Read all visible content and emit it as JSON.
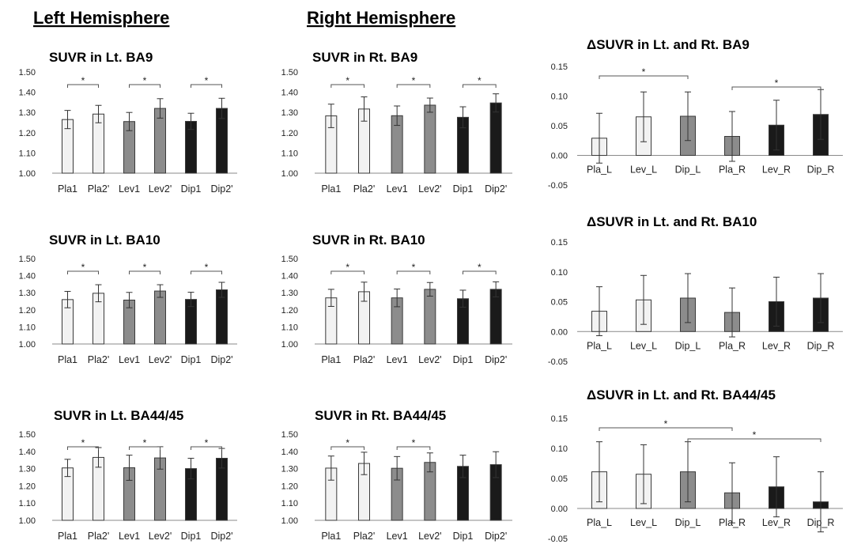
{
  "headings": {
    "left": "Left Hemisphere",
    "right": "Right Hemisphere"
  },
  "colors": {
    "placebo": "#f2f2f2",
    "levomilnacipran": "#8c8c8c",
    "diprofen": "#1a1a1a",
    "outline": "#3a3a3a"
  },
  "chart_data": [
    {
      "type": "bar",
      "title": "SUVR in Lt. BA9",
      "categories": [
        "Pla1",
        "Pla2'",
        "Lev1",
        "Lev2'",
        "Dip1",
        "Dip2'"
      ],
      "values": [
        1.265,
        1.292,
        1.255,
        1.32,
        1.256,
        1.32
      ],
      "errors": [
        0.045,
        0.043,
        0.045,
        0.048,
        0.04,
        0.05
      ],
      "ylim": [
        1.0,
        1.5
      ],
      "yticks": [
        "1.00",
        "1.10",
        "1.20",
        "1.30",
        "1.40",
        "1.50"
      ],
      "significance": [
        {
          "from": 0,
          "to": 1,
          "label": "*"
        },
        {
          "from": 2,
          "to": 3,
          "label": "*"
        },
        {
          "from": 4,
          "to": 5,
          "label": "*"
        }
      ]
    },
    {
      "type": "bar",
      "title": "SUVR in Rt. BA9",
      "categories": [
        "Pla1",
        "Pla2'",
        "Lev1",
        "Lev2'",
        "Dip1",
        "Dip2'"
      ],
      "values": [
        1.283,
        1.317,
        1.284,
        1.336,
        1.276,
        1.347
      ],
      "errors": [
        0.058,
        0.06,
        0.048,
        0.035,
        0.052,
        0.045
      ],
      "ylim": [
        1.0,
        1.5
      ],
      "yticks": [
        "1.00",
        "1.10",
        "1.20",
        "1.30",
        "1.40",
        "1.50"
      ],
      "significance": [
        {
          "from": 0,
          "to": 1,
          "label": "*"
        },
        {
          "from": 2,
          "to": 3,
          "label": "*"
        },
        {
          "from": 4,
          "to": 5,
          "label": "*"
        }
      ]
    },
    {
      "type": "bar",
      "title": "ΔSUVR in Lt. and Rt. BA9",
      "categories": [
        "Pla_L",
        "Lev_L",
        "Dip_L",
        "Pla_R",
        "Lev_R",
        "Dip_R"
      ],
      "values": [
        0.029,
        0.065,
        0.066,
        0.032,
        0.051,
        0.069
      ],
      "errors": [
        0.042,
        0.042,
        0.041,
        0.042,
        0.042,
        0.042
      ],
      "ylim": [
        -0.05,
        0.15
      ],
      "yticks": [
        "-0.05",
        "0.00",
        "0.05",
        "0.10",
        "0.15"
      ],
      "significance": [
        {
          "from": 0,
          "to": 2,
          "label": "*"
        },
        {
          "from": 3,
          "to": 5,
          "label": "*"
        }
      ]
    },
    {
      "type": "bar",
      "title": "SUVR in Lt. BA10",
      "categories": [
        "Pla1",
        "Pla2'",
        "Lev1",
        "Lev2'",
        "Dip1",
        "Dip2'"
      ],
      "values": [
        1.26,
        1.297,
        1.257,
        1.31,
        1.261,
        1.317
      ],
      "errors": [
        0.048,
        0.05,
        0.045,
        0.037,
        0.042,
        0.044
      ],
      "ylim": [
        1.0,
        1.5
      ],
      "yticks": [
        "1.00",
        "1.10",
        "1.20",
        "1.30",
        "1.40",
        "1.50"
      ],
      "significance": [
        {
          "from": 0,
          "to": 1,
          "label": "*"
        },
        {
          "from": 2,
          "to": 3,
          "label": "*"
        },
        {
          "from": 4,
          "to": 5,
          "label": "*"
        }
      ]
    },
    {
      "type": "bar",
      "title": "SUVR in Rt. BA10",
      "categories": [
        "Pla1",
        "Pla2'",
        "Lev1",
        "Lev2'",
        "Dip1",
        "Dip2'"
      ],
      "values": [
        1.27,
        1.306,
        1.27,
        1.32,
        1.265,
        1.32
      ],
      "errors": [
        0.05,
        0.056,
        0.052,
        0.04,
        0.05,
        0.044
      ],
      "ylim": [
        1.0,
        1.5
      ],
      "yticks": [
        "1.00",
        "1.10",
        "1.20",
        "1.30",
        "1.40",
        "1.50"
      ],
      "significance": [
        {
          "from": 0,
          "to": 1,
          "label": "*"
        },
        {
          "from": 2,
          "to": 3,
          "label": "*"
        },
        {
          "from": 4,
          "to": 5,
          "label": "*"
        }
      ]
    },
    {
      "type": "bar",
      "title": "ΔSUVR in Lt. and Rt. BA10",
      "categories": [
        "Pla_L",
        "Lev_L",
        "Dip_L",
        "Pla_R",
        "Lev_R",
        "Dip_R"
      ],
      "values": [
        0.034,
        0.053,
        0.056,
        0.032,
        0.05,
        0.056
      ],
      "errors": [
        0.041,
        0.041,
        0.041,
        0.041,
        0.041,
        0.041
      ],
      "ylim": [
        -0.05,
        0.15
      ],
      "yticks": [
        "-0.05",
        "0.00",
        "0.05",
        "0.10",
        "0.15"
      ],
      "significance": []
    },
    {
      "type": "bar",
      "title": "SUVR in Lt. BA44/45",
      "categories": [
        "Pla1",
        "Pla2'",
        "Lev1",
        "Lev2'",
        "Dip1",
        "Dip2'"
      ],
      "values": [
        1.304,
        1.365,
        1.305,
        1.362,
        1.3,
        1.36
      ],
      "errors": [
        0.05,
        0.057,
        0.073,
        0.065,
        0.06,
        0.057
      ],
      "ylim": [
        1.0,
        1.5
      ],
      "yticks": [
        "1.00",
        "1.10",
        "1.20",
        "1.30",
        "1.40",
        "1.50"
      ],
      "significance": [
        {
          "from": 0,
          "to": 1,
          "label": "*"
        },
        {
          "from": 2,
          "to": 3,
          "label": "*"
        },
        {
          "from": 4,
          "to": 5,
          "label": "*"
        }
      ]
    },
    {
      "type": "bar",
      "title": "SUVR in Rt. BA44/45",
      "categories": [
        "Pla1",
        "Pla2'",
        "Lev1",
        "Lev2'",
        "Dip1",
        "Dip2'"
      ],
      "values": [
        1.303,
        1.33,
        1.302,
        1.336,
        1.313,
        1.323
      ],
      "errors": [
        0.07,
        0.065,
        0.068,
        0.055,
        0.065,
        0.075
      ],
      "ylim": [
        1.0,
        1.5
      ],
      "yticks": [
        "1.00",
        "1.10",
        "1.20",
        "1.30",
        "1.40",
        "1.50"
      ],
      "significance": [
        {
          "from": 0,
          "to": 1,
          "label": "*"
        },
        {
          "from": 2,
          "to": 3,
          "label": "*"
        }
      ]
    },
    {
      "type": "bar",
      "title": "ΔSUVR in Lt. and Rt. BA44/45",
      "categories": [
        "Pla_L",
        "Lev_L",
        "Dip_L",
        "Pla_R",
        "Lev_R",
        "Dip_R"
      ],
      "values": [
        0.061,
        0.057,
        0.061,
        0.026,
        0.036,
        0.011
      ],
      "errors": [
        0.05,
        0.049,
        0.05,
        0.05,
        0.05,
        0.05
      ],
      "ylim": [
        -0.05,
        0.15
      ],
      "yticks": [
        "-0.05",
        "0.00",
        "0.05",
        "0.10",
        "0.15"
      ],
      "significance": [
        {
          "from": 0,
          "to": 3,
          "label": "*"
        },
        {
          "from": 2,
          "to": 5,
          "label": "*"
        }
      ]
    }
  ]
}
